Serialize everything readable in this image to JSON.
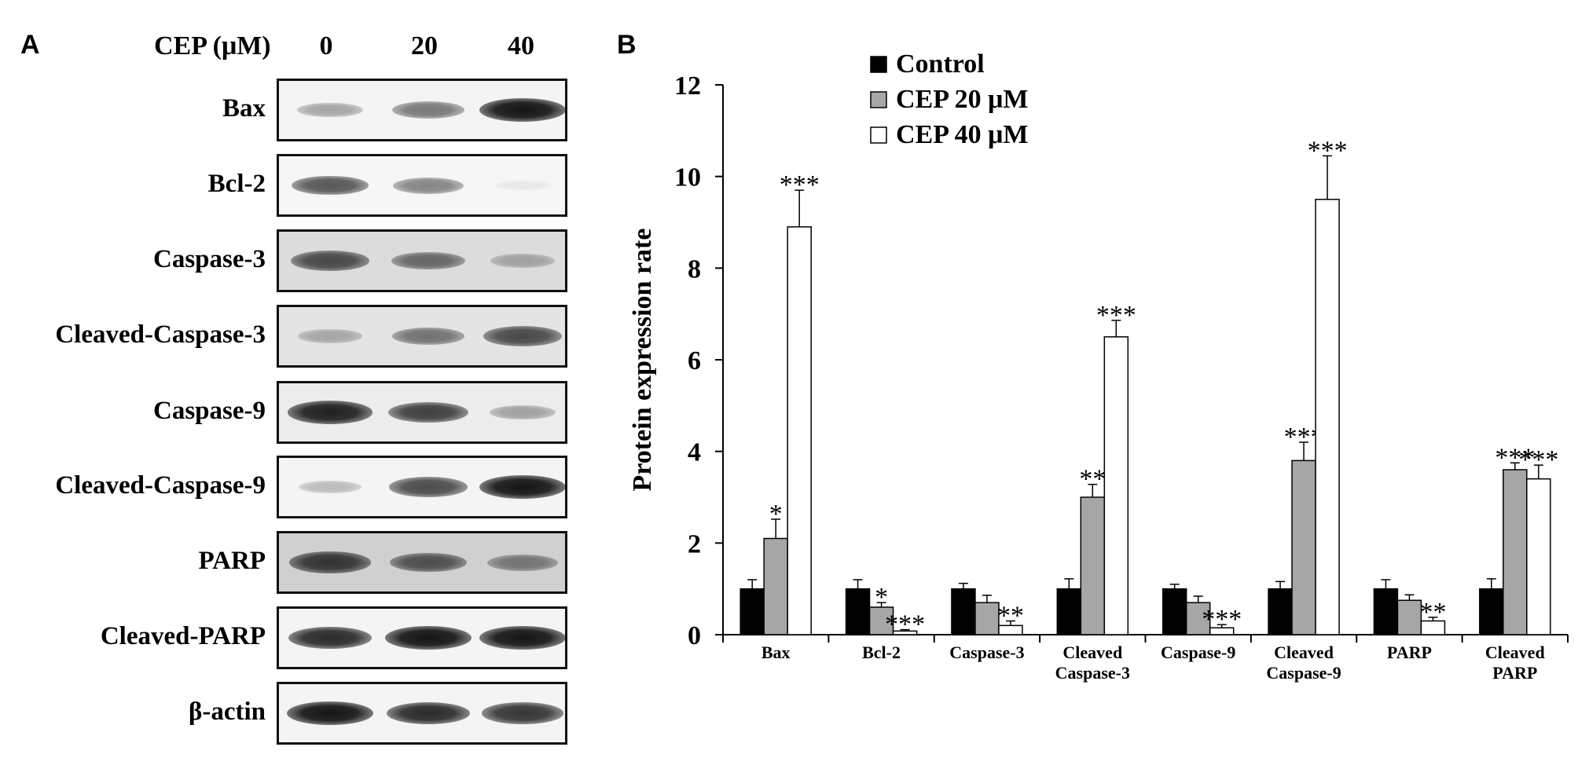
{
  "panel_a": {
    "letter": "A",
    "header_label": "CEP (μM)",
    "lanes": [
      "0",
      "20",
      "40"
    ],
    "blots": [
      {
        "label": "Bax",
        "bands": [
          0.35,
          0.55,
          1.0
        ],
        "background": "#f4f4f4"
      },
      {
        "label": "Bcl-2",
        "bands": [
          0.7,
          0.5,
          0.05
        ],
        "background": "#f6f6f6"
      },
      {
        "label": "Caspase-3",
        "bands": [
          0.75,
          0.6,
          0.3
        ],
        "background": "#dcdcdc"
      },
      {
        "label": "Cleaved-Caspase-3",
        "bands": [
          0.3,
          0.55,
          0.75
        ],
        "background": "#e4e4e4"
      },
      {
        "label": "Caspase-9",
        "bands": [
          0.95,
          0.8,
          0.35
        ],
        "background": "#ececec"
      },
      {
        "label": "Cleaved-Caspase-9",
        "bands": [
          0.25,
          0.75,
          1.0
        ],
        "background": "#f4f4f4"
      },
      {
        "label": "PARP",
        "bands": [
          0.85,
          0.7,
          0.5
        ],
        "background": "#d0d0d0"
      },
      {
        "label": "Cleaved-PARP",
        "bands": [
          0.9,
          1.0,
          1.0
        ],
        "background": "#f4f4f4"
      },
      {
        "label": "β-actin",
        "bands": [
          1.0,
          0.9,
          0.85
        ],
        "background": "#f4f4f4"
      }
    ]
  },
  "panel_b": {
    "letter": "B"
  },
  "chart_data": {
    "type": "bar",
    "title": "",
    "xlabel": "",
    "ylabel": "Protein expression rate",
    "ylim": [
      0,
      12
    ],
    "yticks": [
      0,
      2,
      4,
      6,
      8,
      10,
      12
    ],
    "grid": false,
    "legend_position": "top-left",
    "categories": [
      [
        "Bax"
      ],
      [
        "Bcl-2"
      ],
      [
        "Caspase-3"
      ],
      [
        "Cleaved",
        "Caspase-3"
      ],
      [
        "Caspase-9"
      ],
      [
        "Cleaved",
        "Caspase-9"
      ],
      [
        "PARP"
      ],
      [
        "Cleaved",
        "PARP"
      ]
    ],
    "series": [
      {
        "name": "Control",
        "color": "#000000",
        "values": [
          1.0,
          1.0,
          1.0,
          1.0,
          1.0,
          1.0,
          1.0,
          1.0
        ],
        "errors": [
          0.2,
          0.2,
          0.12,
          0.22,
          0.1,
          0.16,
          0.2,
          0.22
        ],
        "significance": [
          "",
          "",
          "",
          "",
          "",
          "",
          "",
          ""
        ]
      },
      {
        "name": "CEP 20 μM",
        "color": "#a6a6a6",
        "values": [
          2.1,
          0.6,
          0.7,
          3.0,
          0.7,
          3.8,
          0.75,
          3.6
        ],
        "errors": [
          0.42,
          0.1,
          0.16,
          0.28,
          0.14,
          0.4,
          0.12,
          0.15
        ],
        "significance": [
          "*",
          "*",
          "",
          "**",
          "",
          "***",
          "",
          "***"
        ]
      },
      {
        "name": "CEP 40 μM",
        "color": "#ffffff",
        "values": [
          8.9,
          0.08,
          0.2,
          6.5,
          0.15,
          9.5,
          0.3,
          3.4
        ],
        "errors": [
          0.8,
          0.03,
          0.1,
          0.36,
          0.07,
          0.95,
          0.08,
          0.3
        ],
        "significance": [
          "***",
          "***",
          "**",
          "***",
          "***",
          "***",
          "**",
          "***"
        ]
      }
    ]
  }
}
